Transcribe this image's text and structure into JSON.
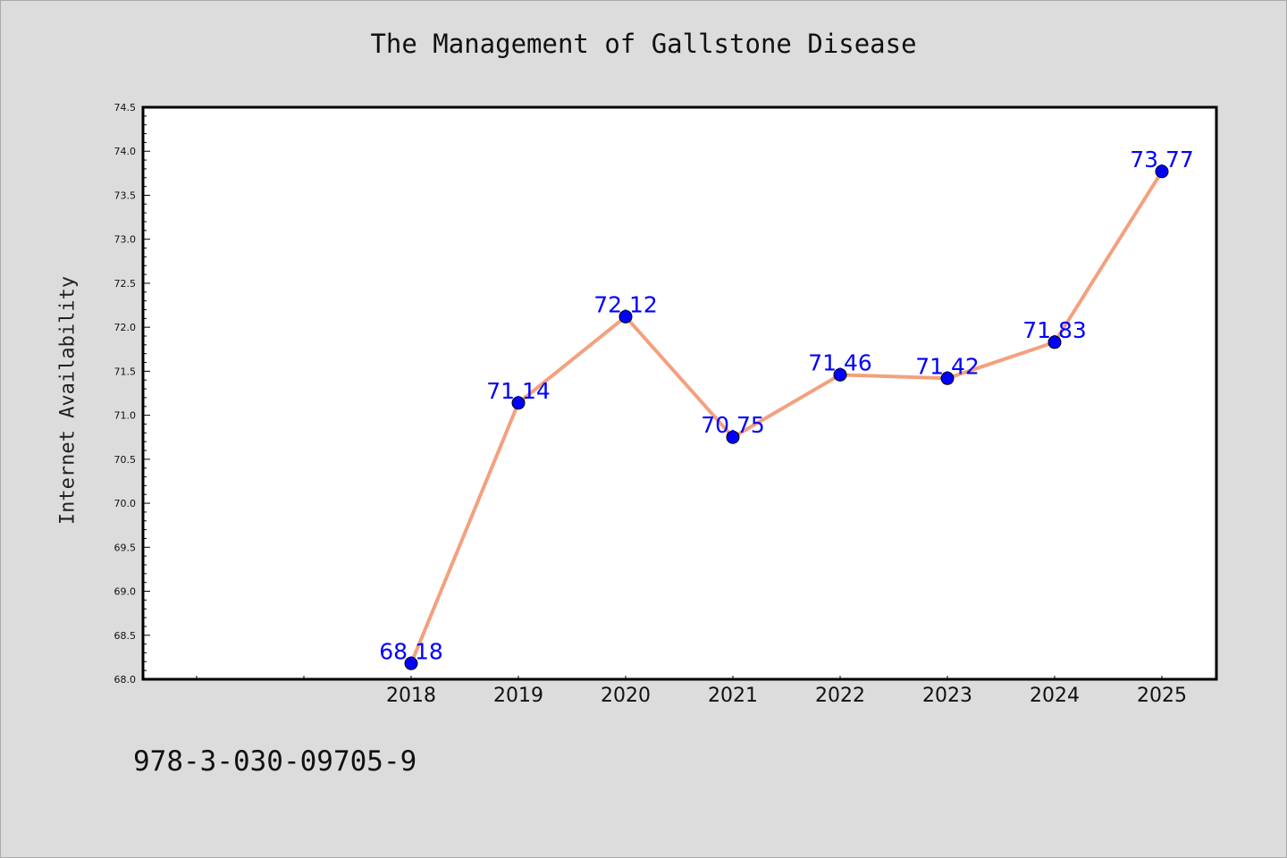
{
  "chart_data": {
    "type": "line",
    "title": "The Management of Gallstone Disease",
    "xlabel": "",
    "ylabel": "Internet Availability",
    "categories": [
      "2018",
      "2019",
      "2020",
      "2021",
      "2022",
      "2023",
      "2024",
      "2025"
    ],
    "values": [
      68.18,
      71.14,
      72.12,
      70.75,
      71.46,
      71.42,
      71.83,
      73.77
    ],
    "data_labels": [
      "68.18",
      "71.14",
      "72.12",
      "70.75",
      "71.46",
      "71.42",
      "71.83",
      "73.77"
    ],
    "ylim": [
      68.0,
      74.5
    ],
    "yticks": [
      "68.0",
      "68.5",
      "69.0",
      "69.5",
      "70.0",
      "70.5",
      "71.0",
      "71.5",
      "72.0",
      "72.5",
      "73.0",
      "73.5",
      "74.0",
      "74.5"
    ],
    "grid": false,
    "legend": "none",
    "line_color": "#f4a07e",
    "marker_color": "#0000ff",
    "label_color": "#0000ff"
  },
  "footer": {
    "isbn": "978-3-030-09705-9"
  }
}
